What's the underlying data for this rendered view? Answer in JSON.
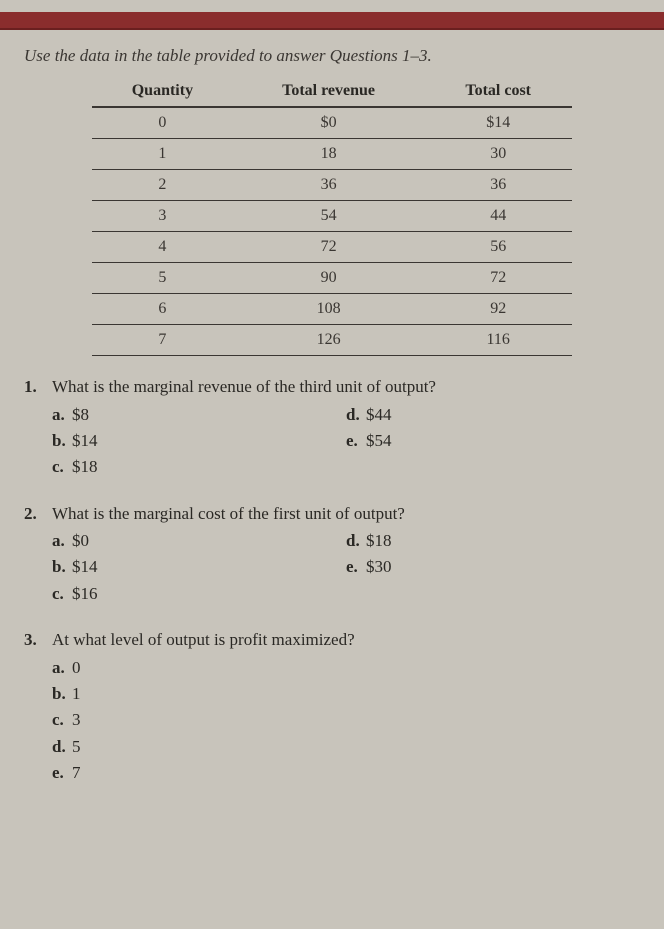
{
  "instruction": "Use the data in the table provided to answer Questions 1–3.",
  "table": {
    "columns": [
      "Quantity",
      "Total revenue",
      "Total cost"
    ],
    "rows": [
      [
        "0",
        "$0",
        "$14"
      ],
      [
        "1",
        "18",
        "30"
      ],
      [
        "2",
        "36",
        "36"
      ],
      [
        "3",
        "54",
        "44"
      ],
      [
        "4",
        "72",
        "56"
      ],
      [
        "5",
        "90",
        "72"
      ],
      [
        "6",
        "108",
        "92"
      ],
      [
        "7",
        "126",
        "116"
      ]
    ]
  },
  "questions": [
    {
      "num": "1.",
      "text": "What is the marginal revenue of the third unit of output?",
      "left": [
        {
          "l": "a.",
          "t": "$8"
        },
        {
          "l": "b.",
          "t": "$14"
        },
        {
          "l": "c.",
          "t": "$18"
        }
      ],
      "right": [
        {
          "l": "d.",
          "t": "$44"
        },
        {
          "l": "e.",
          "t": "$54"
        }
      ]
    },
    {
      "num": "2.",
      "text": "What is the marginal cost of the first unit of output?",
      "left": [
        {
          "l": "a.",
          "t": "$0"
        },
        {
          "l": "b.",
          "t": "$14"
        },
        {
          "l": "c.",
          "t": "$16"
        }
      ],
      "right": [
        {
          "l": "d.",
          "t": "$18"
        },
        {
          "l": "e.",
          "t": "$30"
        }
      ]
    },
    {
      "num": "3.",
      "text": "At what level of output is profit maximized?",
      "left": [
        {
          "l": "a.",
          "t": "0"
        },
        {
          "l": "b.",
          "t": "1"
        },
        {
          "l": "c.",
          "t": "3"
        },
        {
          "l": "d.",
          "t": "5"
        },
        {
          "l": "e.",
          "t": "7"
        }
      ],
      "right": []
    }
  ]
}
